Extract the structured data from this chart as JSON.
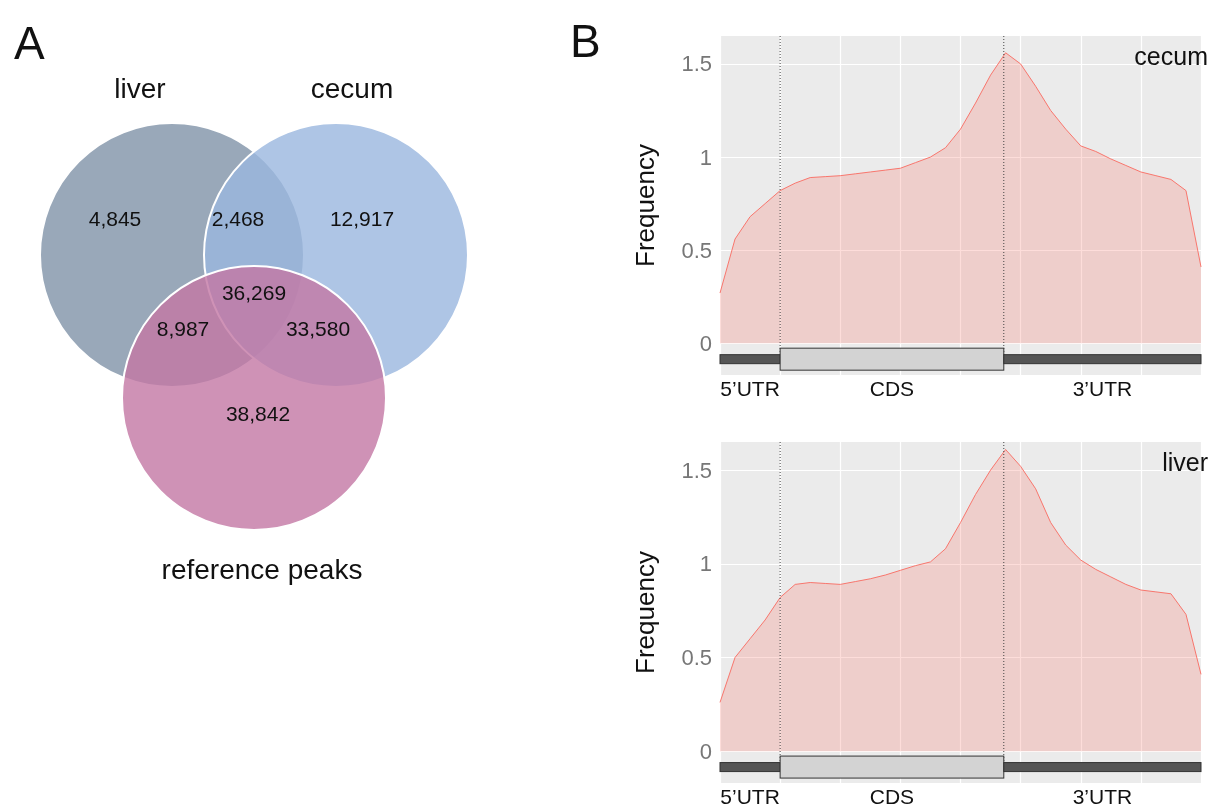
{
  "chart_data": [
    {
      "type": "other",
      "annotations": [
        "A",
        "liver",
        "cecum",
        "reference peaks"
      ],
      "categories": [
        null,
        null,
        null,
        null,
        null,
        null,
        null
      ],
      "values": [
        4845,
        2468,
        12917,
        36269,
        8987,
        33580,
        38842
      ],
      "value_labels": [
        "4,845",
        "2,468",
        "12,917",
        "36,269",
        "8,987",
        "33,580",
        "38,842"
      ]
    },
    {
      "type": "area",
      "title": "cecum",
      "ylabel": "Frequency",
      "annotations": [
        "B",
        "5’UTR",
        "CDS",
        "3’UTR"
      ],
      "color": "#f8766d",
      "categories": [
        null,
        null,
        null,
        null,
        null,
        null,
        null,
        null,
        null,
        null,
        null,
        null,
        null,
        null,
        null,
        null,
        null,
        null,
        null,
        null,
        null,
        null,
        null,
        null,
        null,
        null,
        null,
        null,
        null,
        null,
        null,
        null,
        null
      ],
      "values": [
        0.27,
        0.56,
        0.68,
        0.75,
        0.82,
        0.86,
        0.89,
        0.895,
        0.9,
        0.91,
        0.92,
        0.93,
        0.94,
        0.97,
        1.0,
        1.05,
        1.15,
        1.29,
        1.44,
        1.56,
        1.5,
        1.38,
        1.25,
        1.15,
        1.06,
        1.03,
        0.99,
        0.955,
        0.92,
        0.9,
        0.88,
        0.82,
        0.41
      ],
      "ylim": [
        -0.17,
        1.65
      ],
      "yticks": [
        0,
        0.5,
        1,
        1.5
      ],
      "grid": true,
      "tick_labels": "y"
    },
    {
      "type": "area",
      "title": "liver",
      "ylabel": "Frequency",
      "annotations": [
        "5’UTR",
        "CDS",
        "3’UTR"
      ],
      "color": "#f8766d",
      "categories": [
        null,
        null,
        null,
        null,
        null,
        null,
        null,
        null,
        null,
        null,
        null,
        null,
        null,
        null,
        null,
        null,
        null,
        null,
        null,
        null,
        null,
        null,
        null,
        null,
        null,
        null,
        null,
        null,
        null,
        null,
        null,
        null,
        null
      ],
      "values": [
        0.26,
        0.5,
        0.6,
        0.7,
        0.82,
        0.89,
        0.9,
        0.895,
        0.89,
        0.905,
        0.92,
        0.94,
        0.965,
        0.99,
        1.01,
        1.08,
        1.22,
        1.37,
        1.5,
        1.61,
        1.52,
        1.4,
        1.22,
        1.1,
        1.02,
        0.97,
        0.93,
        0.89,
        0.86,
        0.85,
        0.84,
        0.73,
        0.41
      ],
      "ylim": [
        -0.17,
        1.65
      ],
      "yticks": [
        0,
        0.5,
        1,
        1.5
      ],
      "grid": true,
      "tick_labels": "y"
    }
  ]
}
